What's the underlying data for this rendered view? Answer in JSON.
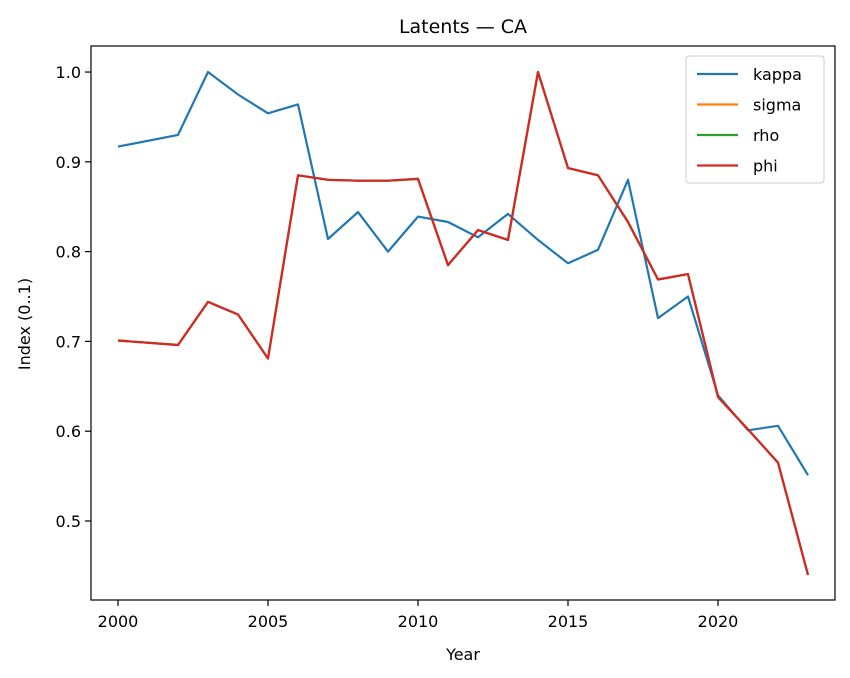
{
  "chart_data": {
    "type": "line",
    "title": "Latents — CA",
    "xlabel": "Year",
    "ylabel": "Index (0..1)",
    "xlim": [
      1999.1,
      2023.9
    ],
    "ylim": [
      0.412,
      1.029
    ],
    "x_ticks": [
      2000,
      2005,
      2010,
      2015,
      2020
    ],
    "y_ticks": [
      0.5,
      0.6,
      0.7,
      0.8,
      0.9,
      1.0
    ],
    "y_tick_labels": [
      "0.5",
      "0.6",
      "0.7",
      "0.8",
      "0.9",
      "1.0"
    ],
    "legend_position": "top-right",
    "series": [
      {
        "name": "kappa",
        "color": "#1f77b4",
        "x": [
          2000,
          2002,
          2003,
          2004,
          2005,
          2006,
          2007,
          2008,
          2009,
          2010,
          2011,
          2012,
          2013,
          2014,
          2015,
          2016,
          2017,
          2018,
          2019,
          2020,
          2021,
          2022,
          2023
        ],
        "values": [
          0.917,
          0.93,
          1.0,
          0.975,
          0.954,
          0.964,
          0.814,
          0.844,
          0.8,
          0.839,
          0.833,
          0.816,
          0.842,
          0.813,
          0.787,
          0.802,
          0.88,
          0.726,
          0.75,
          0.64,
          0.601,
          0.606,
          0.551
        ]
      },
      {
        "name": "sigma",
        "color": "#ff7f0e",
        "x": [
          2000,
          2002,
          2003,
          2004,
          2005,
          2006,
          2007,
          2008,
          2009,
          2010,
          2011,
          2012,
          2013,
          2014,
          2015,
          2016,
          2017,
          2018,
          2019,
          2020,
          2021,
          2022,
          2023
        ],
        "values": [
          0.701,
          0.696,
          0.744,
          0.73,
          0.681,
          0.885,
          0.88,
          0.879,
          0.879,
          0.881,
          0.785,
          0.824,
          0.813,
          1.0,
          0.893,
          0.885,
          0.833,
          0.769,
          0.775,
          0.638,
          0.602,
          0.565,
          0.44
        ]
      },
      {
        "name": "rho",
        "color": "#2ca02c",
        "x": [
          2000,
          2002,
          2003,
          2004,
          2005,
          2006,
          2007,
          2008,
          2009,
          2010,
          2011,
          2012,
          2013,
          2014,
          2015,
          2016,
          2017,
          2018,
          2019,
          2020,
          2021,
          2022,
          2023
        ],
        "values": [
          0.701,
          0.696,
          0.744,
          0.73,
          0.681,
          0.885,
          0.88,
          0.879,
          0.879,
          0.881,
          0.785,
          0.824,
          0.813,
          1.0,
          0.893,
          0.885,
          0.833,
          0.769,
          0.775,
          0.638,
          0.602,
          0.565,
          0.44
        ]
      },
      {
        "name": "phi",
        "color": "#d62728",
        "x": [
          2000,
          2002,
          2003,
          2004,
          2005,
          2006,
          2007,
          2008,
          2009,
          2010,
          2011,
          2012,
          2013,
          2014,
          2015,
          2016,
          2017,
          2018,
          2019,
          2020,
          2021,
          2022,
          2023
        ],
        "values": [
          0.701,
          0.696,
          0.744,
          0.73,
          0.681,
          0.885,
          0.88,
          0.879,
          0.879,
          0.881,
          0.785,
          0.824,
          0.813,
          1.0,
          0.893,
          0.885,
          0.833,
          0.769,
          0.775,
          0.638,
          0.602,
          0.565,
          0.44
        ]
      }
    ]
  }
}
